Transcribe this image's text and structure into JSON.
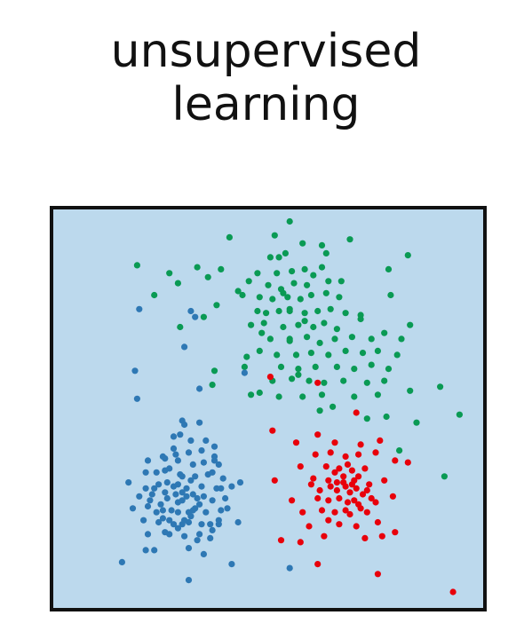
{
  "title": {
    "line1": "unsupervised",
    "line2": "learning"
  },
  "chart_data": {
    "type": "scatter",
    "title": "unsupervised learning",
    "xlabel": "",
    "ylabel": "",
    "grid": false,
    "legend": "none",
    "xlim": [
      0,
      100
    ],
    "ylim": [
      0,
      100
    ],
    "background_color": "#bcd9ed",
    "border_color": "#111111",
    "series": [
      {
        "color": "#0a9a54",
        "points": [
          [
            55.0,
            97.0
          ],
          [
            41.0,
            93.0
          ],
          [
            51.5,
            93.5
          ],
          [
            58.0,
            91.5
          ],
          [
            69.0,
            92.5
          ],
          [
            78.0,
            85.0
          ],
          [
            19.5,
            86.0
          ],
          [
            33.5,
            85.5
          ],
          [
            50.5,
            88.0
          ],
          [
            54.0,
            89.0
          ],
          [
            52.0,
            84.0
          ],
          [
            55.5,
            84.5
          ],
          [
            58.5,
            85.0
          ],
          [
            60.5,
            83.5
          ],
          [
            62.5,
            85.5
          ],
          [
            50.0,
            81.0
          ],
          [
            53.0,
            80.0
          ],
          [
            56.0,
            81.5
          ],
          [
            59.0,
            81.0
          ],
          [
            64.0,
            82.0
          ],
          [
            48.0,
            78.0
          ],
          [
            51.0,
            77.5
          ],
          [
            54.5,
            78.0
          ],
          [
            57.5,
            77.5
          ],
          [
            60.0,
            78.5
          ],
          [
            63.5,
            79.0
          ],
          [
            66.5,
            78.0
          ],
          [
            47.5,
            74.5
          ],
          [
            52.5,
            74.5
          ],
          [
            55.0,
            75.0
          ],
          [
            58.5,
            74.0
          ],
          [
            61.5,
            74.5
          ],
          [
            64.5,
            75.0
          ],
          [
            68.0,
            74.0
          ],
          [
            46.0,
            71.0
          ],
          [
            49.0,
            71.5
          ],
          [
            53.5,
            70.5
          ],
          [
            57.0,
            71.0
          ],
          [
            60.5,
            70.5
          ],
          [
            63.0,
            71.5
          ],
          [
            66.0,
            70.0
          ],
          [
            71.5,
            72.5
          ],
          [
            50.5,
            67.5
          ],
          [
            55.0,
            67.0
          ],
          [
            59.0,
            68.0
          ],
          [
            62.0,
            66.5
          ],
          [
            65.5,
            67.5
          ],
          [
            69.5,
            68.0
          ],
          [
            74.0,
            67.5
          ],
          [
            77.0,
            69.0
          ],
          [
            48.0,
            64.5
          ],
          [
            52.0,
            63.5
          ],
          [
            56.5,
            63.5
          ],
          [
            60.0,
            64.0
          ],
          [
            64.0,
            63.5
          ],
          [
            68.0,
            64.5
          ],
          [
            72.0,
            64.0
          ],
          [
            75.5,
            64.5
          ],
          [
            80.0,
            63.5
          ],
          [
            53.0,
            60.5
          ],
          [
            57.0,
            60.0
          ],
          [
            61.0,
            60.5
          ],
          [
            66.0,
            60.5
          ],
          [
            70.0,
            60.0
          ],
          [
            74.0,
            61.0
          ],
          [
            78.0,
            60.0
          ],
          [
            51.0,
            57.0
          ],
          [
            55.5,
            57.5
          ],
          [
            59.5,
            57.0
          ],
          [
            63.0,
            56.5
          ],
          [
            67.5,
            57.0
          ],
          [
            73.0,
            56.5
          ],
          [
            77.0,
            57.0
          ],
          [
            48.0,
            54.0
          ],
          [
            52.5,
            53.0
          ],
          [
            58.0,
            53.0
          ],
          [
            62.5,
            53.5
          ],
          [
            70.0,
            53.0
          ],
          [
            75.5,
            53.5
          ],
          [
            23.5,
            78.5
          ],
          [
            27.0,
            84.0
          ],
          [
            39.0,
            85.0
          ],
          [
            35.0,
            73.0
          ],
          [
            29.5,
            70.5
          ],
          [
            37.5,
            59.5
          ],
          [
            38.0,
            76.0
          ],
          [
            37.0,
            56.0
          ],
          [
            44.0,
            78.5
          ],
          [
            45.5,
            82.0
          ],
          [
            44.5,
            60.5
          ],
          [
            47.5,
            84.0
          ],
          [
            43.0,
            79.5
          ],
          [
            52.5,
            88.0
          ],
          [
            53.5,
            79.0
          ],
          [
            36.0,
            83.0
          ],
          [
            29.0,
            81.5
          ],
          [
            63.5,
            89.0
          ],
          [
            82.5,
            88.5
          ],
          [
            83.0,
            71.0
          ],
          [
            78.5,
            78.5
          ],
          [
            73.0,
            47.5
          ],
          [
            84.5,
            46.5
          ],
          [
            94.5,
            48.5
          ],
          [
            80.5,
            39.5
          ],
          [
            81.0,
            67.5
          ],
          [
            45.0,
            63.0
          ],
          [
            91.0,
            33.0
          ],
          [
            62.0,
            49.5
          ],
          [
            46.0,
            53.5
          ],
          [
            77.5,
            48.0
          ],
          [
            71.5,
            73.5
          ],
          [
            90.0,
            55.5
          ],
          [
            83.0,
            54.5
          ],
          [
            65.0,
            50.5
          ],
          [
            55.0,
            67.5
          ],
          [
            57.0,
            58.5
          ],
          [
            62.5,
            91.0
          ],
          [
            55.0,
            74.5
          ],
          [
            49.5,
            74.0
          ],
          [
            67.0,
            82.0
          ],
          [
            48.5,
            69.0
          ],
          [
            58.5,
            72.0
          ]
        ]
      },
      {
        "color": "#2e78b4",
        "points": [
          [
            20.0,
            75.0
          ],
          [
            30.5,
            65.5
          ],
          [
            33.0,
            73.0
          ],
          [
            19.0,
            59.5
          ],
          [
            44.5,
            59.0
          ],
          [
            34.0,
            55.0
          ],
          [
            37.5,
            37.0
          ],
          [
            19.5,
            52.5
          ],
          [
            30.0,
            47.0
          ],
          [
            34.0,
            46.5
          ],
          [
            29.5,
            43.5
          ],
          [
            32.0,
            42.0
          ],
          [
            35.5,
            42.0
          ],
          [
            28.0,
            40.0
          ],
          [
            31.5,
            39.0
          ],
          [
            34.5,
            39.5
          ],
          [
            37.5,
            40.5
          ],
          [
            22.0,
            37.0
          ],
          [
            25.5,
            38.0
          ],
          [
            29.0,
            37.0
          ],
          [
            32.5,
            36.0
          ],
          [
            35.0,
            36.5
          ],
          [
            38.5,
            36.0
          ],
          [
            21.5,
            34.0
          ],
          [
            26.0,
            34.5
          ],
          [
            29.5,
            33.5
          ],
          [
            33.0,
            33.0
          ],
          [
            36.0,
            33.5
          ],
          [
            39.5,
            32.5
          ],
          [
            17.5,
            31.5
          ],
          [
            24.5,
            31.0
          ],
          [
            28.0,
            30.5
          ],
          [
            31.0,
            30.0
          ],
          [
            34.5,
            30.5
          ],
          [
            38.0,
            30.0
          ],
          [
            41.5,
            30.5
          ],
          [
            20.0,
            28.0
          ],
          [
            23.0,
            28.5
          ],
          [
            26.5,
            27.5
          ],
          [
            30.0,
            27.0
          ],
          [
            33.5,
            27.5
          ],
          [
            37.0,
            27.0
          ],
          [
            40.0,
            27.5
          ],
          [
            18.5,
            25.0
          ],
          [
            22.0,
            25.5
          ],
          [
            25.5,
            24.5
          ],
          [
            29.0,
            24.0
          ],
          [
            32.5,
            24.5
          ],
          [
            35.5,
            24.0
          ],
          [
            39.0,
            24.5
          ],
          [
            21.0,
            22.0
          ],
          [
            24.5,
            21.5
          ],
          [
            28.0,
            21.0
          ],
          [
            31.5,
            21.5
          ],
          [
            34.5,
            21.0
          ],
          [
            38.5,
            21.0
          ],
          [
            43.0,
            21.5
          ],
          [
            22.0,
            18.5
          ],
          [
            27.0,
            18.5
          ],
          [
            30.5,
            18.0
          ],
          [
            34.0,
            18.5
          ],
          [
            36.5,
            17.5
          ],
          [
            21.5,
            14.5
          ],
          [
            23.5,
            14.5
          ],
          [
            31.5,
            15.0
          ],
          [
            35.0,
            13.5
          ],
          [
            16.0,
            11.5
          ],
          [
            41.5,
            11.0
          ],
          [
            31.5,
            7.0
          ],
          [
            30.0,
            33.0
          ],
          [
            27.0,
            35.0
          ],
          [
            31.0,
            28.0
          ],
          [
            25.0,
            26.0
          ],
          [
            33.0,
            25.0
          ],
          [
            28.5,
            28.5
          ],
          [
            27.0,
            22.0
          ],
          [
            26.0,
            19.0
          ],
          [
            23.5,
            30.0
          ],
          [
            32.0,
            32.0
          ],
          [
            28.0,
            43.0
          ],
          [
            29.0,
            20.0
          ],
          [
            30.0,
            21.0
          ],
          [
            43.5,
            31.5
          ],
          [
            37.0,
            34.0
          ],
          [
            40.5,
            25.0
          ],
          [
            37.0,
            19.5
          ],
          [
            32.0,
            23.0
          ],
          [
            24.0,
            24.0
          ],
          [
            38.5,
            22.0
          ],
          [
            33.5,
            17.0
          ],
          [
            30.5,
            46.0
          ],
          [
            36.5,
            21.0
          ],
          [
            29.0,
            31.0
          ],
          [
            26.0,
            29.0
          ],
          [
            22.5,
            27.0
          ],
          [
            21.5,
            30.0
          ],
          [
            35.0,
            28.0
          ],
          [
            24.0,
            34.0
          ],
          [
            37.5,
            38.0
          ],
          [
            25.5,
            22.5
          ],
          [
            29.0,
            26.5
          ],
          [
            31.5,
            24.0
          ],
          [
            27.5,
            24.5
          ],
          [
            32.5,
            28.5
          ],
          [
            26.5,
            31.5
          ],
          [
            34.0,
            26.0
          ],
          [
            30.5,
            22.0
          ],
          [
            26.0,
            37.5
          ],
          [
            28.5,
            38.5
          ],
          [
            39.0,
            30.0
          ],
          [
            30.0,
            29.0
          ],
          [
            55.0,
            10.0
          ],
          [
            32.0,
            74.5
          ]
        ]
      },
      {
        "color": "#e8000b",
        "points": [
          [
            50.5,
            58.0
          ],
          [
            61.5,
            56.5
          ],
          [
            70.5,
            49.0
          ],
          [
            61.5,
            43.5
          ],
          [
            51.0,
            44.5
          ],
          [
            56.5,
            41.5
          ],
          [
            65.5,
            41.5
          ],
          [
            71.5,
            41.0
          ],
          [
            76.0,
            42.0
          ],
          [
            61.0,
            38.5
          ],
          [
            64.5,
            39.0
          ],
          [
            68.0,
            38.0
          ],
          [
            71.0,
            38.5
          ],
          [
            75.0,
            39.0
          ],
          [
            57.5,
            35.5
          ],
          [
            63.5,
            35.5
          ],
          [
            66.5,
            35.0
          ],
          [
            69.5,
            34.5
          ],
          [
            72.5,
            35.0
          ],
          [
            79.5,
            37.0
          ],
          [
            82.5,
            36.5
          ],
          [
            51.5,
            32.0
          ],
          [
            60.5,
            32.5
          ],
          [
            64.0,
            32.0
          ],
          [
            67.5,
            31.5
          ],
          [
            70.0,
            32.0
          ],
          [
            73.5,
            31.0
          ],
          [
            77.0,
            32.0
          ],
          [
            66.0,
            29.5
          ],
          [
            69.0,
            29.0
          ],
          [
            72.0,
            28.5
          ],
          [
            55.5,
            27.0
          ],
          [
            61.5,
            27.5
          ],
          [
            64.0,
            27.0
          ],
          [
            68.5,
            26.5
          ],
          [
            71.0,
            26.0
          ],
          [
            75.0,
            26.5
          ],
          [
            79.0,
            28.0
          ],
          [
            58.0,
            24.0
          ],
          [
            62.5,
            24.5
          ],
          [
            65.5,
            24.0
          ],
          [
            69.0,
            23.5
          ],
          [
            73.0,
            24.0
          ],
          [
            66.5,
            21.0
          ],
          [
            70.5,
            20.5
          ],
          [
            75.5,
            21.5
          ],
          [
            59.5,
            20.5
          ],
          [
            53.0,
            17.0
          ],
          [
            63.0,
            18.0
          ],
          [
            72.5,
            17.5
          ],
          [
            76.5,
            18.0
          ],
          [
            57.5,
            16.5
          ],
          [
            79.5,
            19.0
          ],
          [
            61.5,
            11.0
          ],
          [
            75.5,
            8.5
          ],
          [
            93.0,
            4.0
          ],
          [
            65.5,
            34.0
          ],
          [
            67.5,
            33.0
          ],
          [
            69.5,
            31.0
          ],
          [
            66.0,
            31.5
          ],
          [
            68.0,
            30.5
          ],
          [
            70.5,
            30.0
          ],
          [
            64.5,
            30.5
          ],
          [
            71.0,
            33.0
          ],
          [
            68.5,
            36.0
          ],
          [
            66.5,
            27.5
          ],
          [
            73.0,
            29.5
          ],
          [
            62.0,
            29.5
          ],
          [
            70.0,
            27.0
          ],
          [
            71.5,
            25.0
          ],
          [
            68.0,
            24.5
          ],
          [
            64.0,
            22.0
          ],
          [
            74.0,
            27.5
          ],
          [
            60.0,
            31.0
          ]
        ]
      }
    ]
  }
}
